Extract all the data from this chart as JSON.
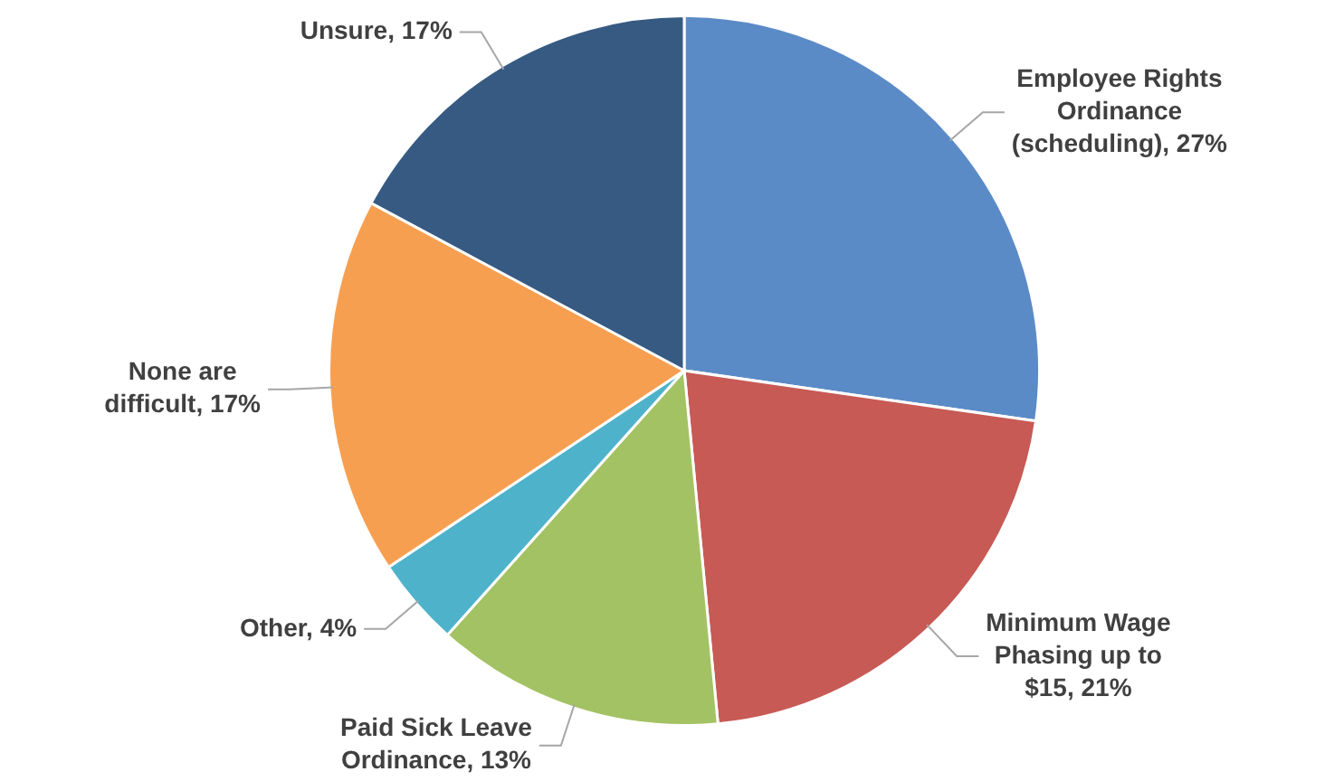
{
  "chart_data": {
    "type": "pie",
    "categories": [
      "Employee Rights Ordinance (scheduling)",
      "Minimum Wage Phasing up to $15",
      "Paid Sick Leave Ordinance",
      "Other",
      "None are difficult",
      "Unsure"
    ],
    "values": [
      27,
      21,
      13,
      4,
      17,
      17
    ],
    "value_labels": [
      "27%",
      "21%",
      "13%",
      "4%",
      "17%",
      "17%"
    ],
    "colors": [
      "#5b8bc7",
      "#c75a55",
      "#a3c263",
      "#4fb2cb",
      "#f79f51",
      "#365a82"
    ],
    "legend": false
  }
}
